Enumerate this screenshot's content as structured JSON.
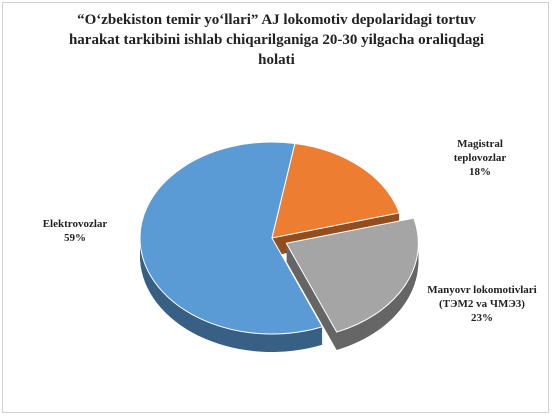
{
  "chart_data": {
    "type": "pie",
    "title": "“O‘zbekiston temir yo‘llari” AJ lokomotiv depolaridagi tortuv harakat tarkibini ishlab chiqarilganiga 20-30 yilgacha oraliqdagi holati",
    "categories": [
      "Elektrovozlar",
      "Magistral teplovozlar",
      "Manyovr lokomotivlari (ТЭМ2 va ЧМЭ3)"
    ],
    "values": [
      59,
      18,
      23
    ],
    "value_labels": [
      "59%",
      "18%",
      "23%"
    ],
    "colors": [
      "#5b9bd5",
      "#ed7d31",
      "#a5a5a5"
    ]
  }
}
